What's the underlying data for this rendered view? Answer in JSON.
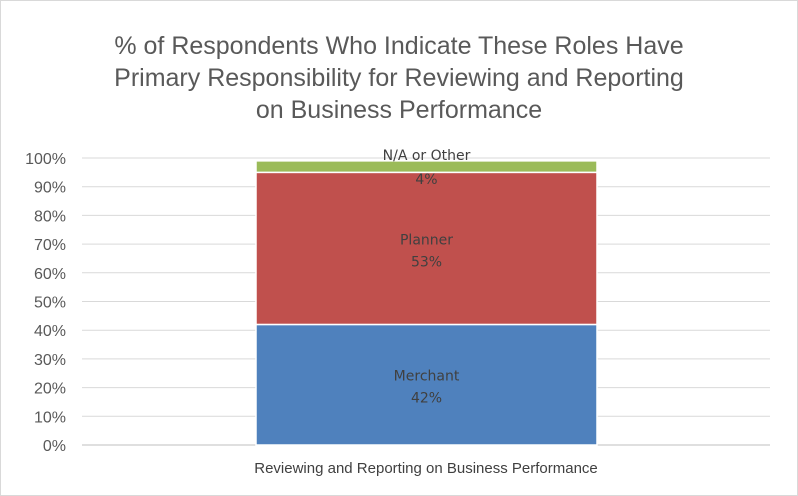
{
  "chart_data": {
    "type": "bar",
    "stacked": true,
    "title_lines": [
      "% of Respondents Who Indicate These Roles Have",
      "Primary Responsibility for Reviewing and Reporting",
      "on Business Performance"
    ],
    "categories": [
      "Reviewing and Reporting on Business Performance"
    ],
    "series": [
      {
        "name": "Merchant",
        "values": [
          42
        ],
        "label": "42%",
        "color": "#4f81bd"
      },
      {
        "name": "Planner",
        "values": [
          53
        ],
        "label": "53%",
        "color": "#c0504d"
      },
      {
        "name": "N/A or Other",
        "values": [
          4
        ],
        "label": "4%",
        "color": "#9bbb59"
      }
    ],
    "y_ticks": [
      "0%",
      "10%",
      "20%",
      "30%",
      "40%",
      "50%",
      "60%",
      "70%",
      "80%",
      "90%",
      "100%"
    ],
    "ylim": [
      0,
      100
    ],
    "grid": true,
    "legend": "none"
  }
}
